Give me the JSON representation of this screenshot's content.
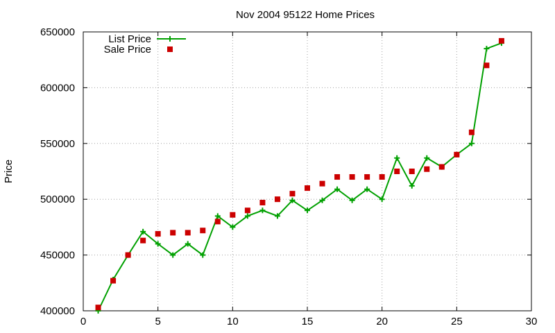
{
  "chart_data": {
    "type": "line",
    "title": "Nov 2004 95122 Home Prices",
    "xlabel": "",
    "ylabel": "Price",
    "xlim": [
      0,
      30
    ],
    "ylim": [
      400000,
      650000
    ],
    "x_ticks": [
      0,
      5,
      10,
      15,
      20,
      25,
      30
    ],
    "y_ticks": [
      400000,
      450000,
      500000,
      550000,
      600000,
      650000
    ],
    "x_tick_labels": [
      "0",
      "5",
      "10",
      "15",
      "20",
      "25",
      "30"
    ],
    "y_tick_labels": [
      "400000",
      "450000",
      "500000",
      "550000",
      "600000",
      "650000"
    ],
    "grid": true,
    "legend_position": "top-left",
    "x": [
      1,
      2,
      3,
      4,
      5,
      6,
      7,
      8,
      9,
      10,
      11,
      12,
      13,
      14,
      15,
      16,
      17,
      18,
      19,
      20,
      21,
      22,
      23,
      24,
      25,
      26,
      27,
      28
    ],
    "series": [
      {
        "name": "List Price",
        "style": "line-with-plus-markers",
        "color": "#00a000",
        "values": [
          400000,
          428000,
          450000,
          471000,
          460000,
          450000,
          460000,
          450000,
          485000,
          475000,
          485000,
          490000,
          485000,
          499000,
          490000,
          499000,
          509000,
          499000,
          509000,
          500000,
          537000,
          512000,
          537000,
          529000,
          540000,
          550000,
          635000,
          640000
        ]
      },
      {
        "name": "Sale Price",
        "style": "square-markers",
        "color": "#cc0000",
        "values": [
          403000,
          427000,
          450000,
          463000,
          469000,
          470000,
          470000,
          472000,
          480000,
          486000,
          490000,
          497000,
          500000,
          505000,
          510000,
          514000,
          520000,
          520000,
          520000,
          520000,
          525000,
          525000,
          527000,
          529000,
          540000,
          560000,
          620000,
          642000
        ]
      }
    ]
  }
}
